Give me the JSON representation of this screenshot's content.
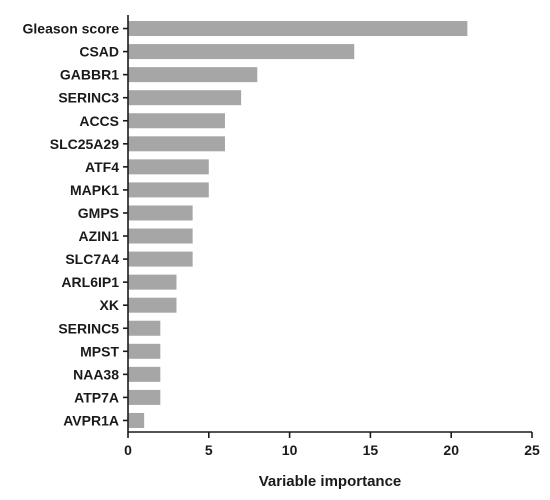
{
  "chart_data": {
    "type": "bar",
    "orientation": "horizontal",
    "categories": [
      "Gleason score",
      "CSAD",
      "GABBR1",
      "SERINC3",
      "ACCS",
      "SLC25A29",
      "ATF4",
      "MAPK1",
      "GMPS",
      "AZIN1",
      "SLC7A4",
      "ARL6IP1",
      "XK",
      "SERINC5",
      "MPST",
      "NAA38",
      "ATP7A",
      "AVPR1A"
    ],
    "values": [
      21,
      14,
      8,
      7,
      6,
      6,
      5,
      5,
      4,
      4,
      4,
      3,
      3,
      2,
      2,
      2,
      2,
      1
    ],
    "xlabel": "Variable importance",
    "ylabel": "",
    "xlim": [
      0,
      25
    ],
    "xticks": [
      0,
      5,
      10,
      15,
      20,
      25
    ],
    "bar_color": "#a6a6a6",
    "grid": false,
    "legend": "none"
  }
}
